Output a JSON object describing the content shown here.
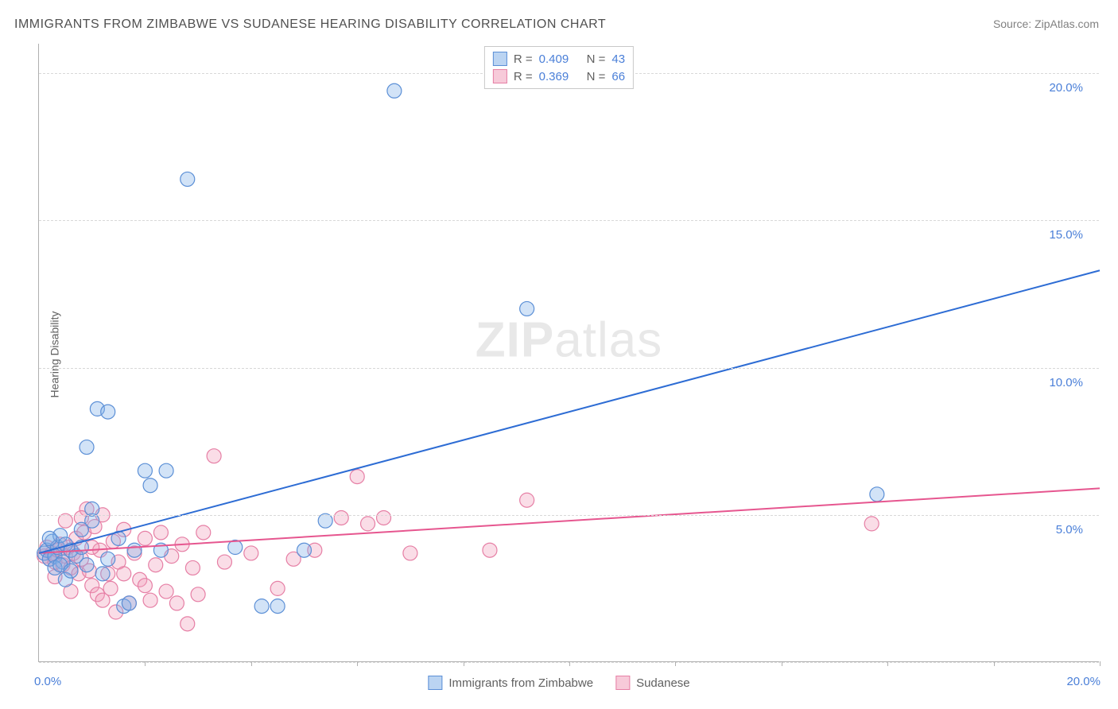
{
  "title": "IMMIGRANTS FROM ZIMBABWE VS SUDANESE HEARING DISABILITY CORRELATION CHART",
  "source_label": "Source: ",
  "source_name": "ZipAtlas.com",
  "watermark_a": "ZIP",
  "watermark_b": "atlas",
  "ylabel": "Hearing Disability",
  "xlim": [
    0,
    20
  ],
  "ylim": [
    0,
    21
  ],
  "x_origin_label": "0.0%",
  "x_end_label": "20.0%",
  "y_ticks": [
    {
      "v": 5,
      "label": "5.0%"
    },
    {
      "v": 10,
      "label": "10.0%"
    },
    {
      "v": 15,
      "label": "15.0%"
    },
    {
      "v": 20,
      "label": "20.0%"
    }
  ],
  "x_ticks_minor": [
    2,
    4,
    6,
    8,
    10,
    12,
    14,
    16,
    18,
    20
  ],
  "grid_vals": [
    0,
    5,
    10,
    15,
    20
  ],
  "grid_color": "#d8d8d8",
  "background_color": "#ffffff",
  "stats": [
    {
      "color": "blue",
      "R_label": "R =",
      "R": "0.409",
      "N_label": "N =",
      "N": "43"
    },
    {
      "color": "pink",
      "R_label": "R =",
      "R": "0.369",
      "N_label": "N =",
      "N": "66"
    }
  ],
  "bottom_legend": [
    {
      "color": "blue",
      "label": "Immigrants from Zimbabwe"
    },
    {
      "color": "pink",
      "label": "Sudanese"
    }
  ],
  "series": {
    "zimbabwe": {
      "color": "blue",
      "marker_radius": 9,
      "trend": {
        "x1": 0,
        "y1": 3.7,
        "x2": 20,
        "y2": 13.3
      },
      "points": [
        [
          0.1,
          3.7
        ],
        [
          0.15,
          3.8
        ],
        [
          0.2,
          3.5
        ],
        [
          0.25,
          4.1
        ],
        [
          0.3,
          3.6
        ],
        [
          0.35,
          3.9
        ],
        [
          0.4,
          4.3
        ],
        [
          0.45,
          3.4
        ],
        [
          0.5,
          4.0
        ],
        [
          0.6,
          3.8
        ],
        [
          0.7,
          3.6
        ],
        [
          0.8,
          4.5
        ],
        [
          0.9,
          3.3
        ],
        [
          1.0,
          4.8
        ],
        [
          0.9,
          7.3
        ],
        [
          1.1,
          8.6
        ],
        [
          1.3,
          8.5
        ],
        [
          1.0,
          5.2
        ],
        [
          1.2,
          3.0
        ],
        [
          1.3,
          3.5
        ],
        [
          1.5,
          4.2
        ],
        [
          1.6,
          1.9
        ],
        [
          1.7,
          2.0
        ],
        [
          1.8,
          3.8
        ],
        [
          2.0,
          6.5
        ],
        [
          2.1,
          6.0
        ],
        [
          2.3,
          3.8
        ],
        [
          2.4,
          6.5
        ],
        [
          2.8,
          16.4
        ],
        [
          3.7,
          3.9
        ],
        [
          4.2,
          1.9
        ],
        [
          4.5,
          1.9
        ],
        [
          5.0,
          3.8
        ],
        [
          5.4,
          4.8
        ],
        [
          6.7,
          19.4
        ],
        [
          9.2,
          12.0
        ],
        [
          15.8,
          5.7
        ],
        [
          0.3,
          3.2
        ],
        [
          0.5,
          2.8
        ],
        [
          0.2,
          4.2
        ],
        [
          0.4,
          3.3
        ],
        [
          0.6,
          3.1
        ],
        [
          0.8,
          3.9
        ]
      ]
    },
    "sudanese": {
      "color": "pink",
      "marker_radius": 9,
      "trend": {
        "x1": 0,
        "y1": 3.7,
        "x2": 20,
        "y2": 5.9
      },
      "points": [
        [
          0.1,
          3.6
        ],
        [
          0.15,
          3.9
        ],
        [
          0.2,
          3.5
        ],
        [
          0.25,
          3.7
        ],
        [
          0.3,
          3.4
        ],
        [
          0.35,
          3.8
        ],
        [
          0.4,
          4.0
        ],
        [
          0.45,
          3.3
        ],
        [
          0.5,
          3.6
        ],
        [
          0.55,
          3.9
        ],
        [
          0.6,
          3.2
        ],
        [
          0.65,
          3.7
        ],
        [
          0.7,
          4.2
        ],
        [
          0.75,
          3.0
        ],
        [
          0.8,
          3.5
        ],
        [
          0.85,
          4.4
        ],
        [
          0.9,
          5.2
        ],
        [
          0.95,
          3.1
        ],
        [
          1.0,
          2.6
        ],
        [
          1.05,
          4.6
        ],
        [
          1.1,
          2.3
        ],
        [
          1.15,
          3.8
        ],
        [
          1.2,
          5.0
        ],
        [
          1.3,
          3.0
        ],
        [
          1.35,
          2.5
        ],
        [
          1.4,
          4.1
        ],
        [
          1.45,
          1.7
        ],
        [
          1.5,
          3.4
        ],
        [
          1.6,
          4.5
        ],
        [
          1.7,
          2.0
        ],
        [
          1.8,
          3.7
        ],
        [
          1.9,
          2.8
        ],
        [
          2.0,
          4.2
        ],
        [
          2.1,
          2.1
        ],
        [
          2.2,
          3.3
        ],
        [
          2.3,
          4.4
        ],
        [
          2.4,
          2.4
        ],
        [
          2.5,
          3.6
        ],
        [
          2.6,
          2.0
        ],
        [
          2.7,
          4.0
        ],
        [
          2.8,
          1.3
        ],
        [
          2.9,
          3.2
        ],
        [
          3.0,
          2.3
        ],
        [
          3.1,
          4.4
        ],
        [
          3.3,
          7.0
        ],
        [
          3.5,
          3.4
        ],
        [
          4.0,
          3.7
        ],
        [
          4.5,
          2.5
        ],
        [
          4.8,
          3.5
        ],
        [
          5.2,
          3.8
        ],
        [
          5.7,
          4.9
        ],
        [
          6.0,
          6.3
        ],
        [
          6.2,
          4.7
        ],
        [
          6.5,
          4.9
        ],
        [
          7.0,
          3.7
        ],
        [
          8.5,
          3.8
        ],
        [
          9.2,
          5.5
        ],
        [
          15.7,
          4.7
        ],
        [
          1.0,
          3.9
        ],
        [
          0.5,
          4.8
        ],
        [
          0.3,
          2.9
        ],
        [
          0.6,
          2.4
        ],
        [
          0.8,
          4.9
        ],
        [
          1.2,
          2.1
        ],
        [
          1.6,
          3.0
        ],
        [
          2.0,
          2.6
        ]
      ]
    }
  }
}
